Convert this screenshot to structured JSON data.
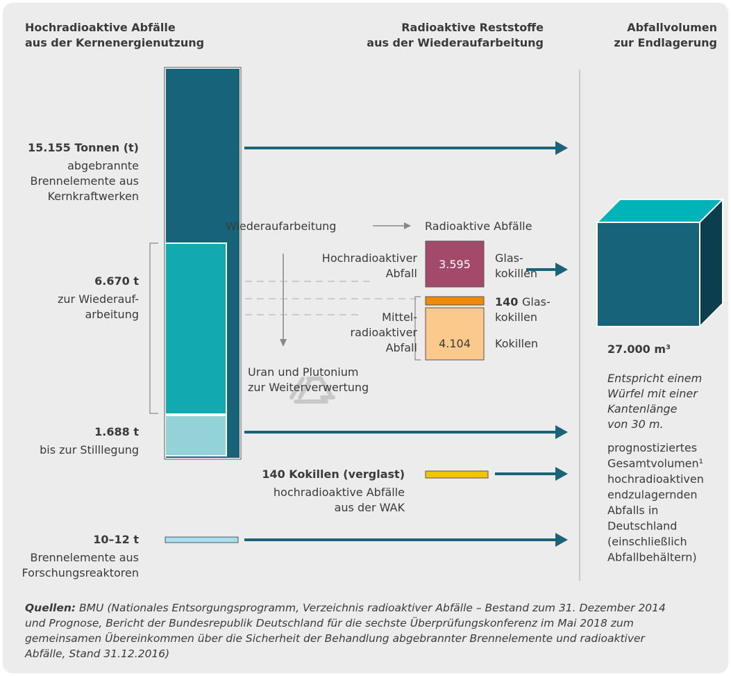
{
  "columns": [
    {
      "title": [
        "Hochradioaktive Abfälle",
        "aus der Kernenergienutzung"
      ]
    },
    {
      "title": [
        "Radioaktive Reststoffe",
        "aus der Wiederaufarbeitung"
      ]
    },
    {
      "title": [
        "Abfallvolumen",
        "zur Endlagerung"
      ]
    }
  ],
  "sources": [
    {
      "amount": "15.155 Tonnen (t)",
      "description": [
        "abgebrannte",
        "Brennelemente aus",
        "Kernkraftwerken"
      ]
    },
    {
      "amount": "6.670 t",
      "description": [
        "zur Wiederauf-",
        "arbeitung"
      ]
    },
    {
      "amount": "1.688 t",
      "description": [
        "bis zur Stilllegung"
      ]
    },
    {
      "amount": "10–12 t",
      "description": [
        "Brennelemente aus",
        "Forschungsreaktoren"
      ]
    }
  ],
  "reprocessing": {
    "process": "Wiederaufarbeitung",
    "result": "Radioaktive Abfälle",
    "high_level": {
      "label": [
        "Hochradioaktiver",
        "Abfall"
      ],
      "count": "3.595",
      "container": [
        "Glas-",
        "kokillen"
      ]
    },
    "medium_glass": {
      "count": "140",
      "container": [
        "Glas-",
        "kokillen"
      ]
    },
    "medium_level": {
      "label": [
        "Mittel-",
        "radioaktiver",
        "Abfall"
      ],
      "count": "4.104",
      "container": "Kokillen"
    },
    "recycling": [
      "Uran und Plutonium",
      "zur Weiterverwertung"
    ]
  },
  "wak": {
    "amount": "140 Kokillen (verglast)",
    "description": [
      "hochradioaktive Abfälle",
      "aus der WAK"
    ]
  },
  "volume": {
    "amount": "27.000 m³",
    "comparison": [
      "Entspricht einem",
      "Würfel mit einer",
      "Kantenlänge",
      "von 30 m."
    ],
    "description": [
      "prognostiziertes",
      "Gesamtvolumen¹",
      "hochradioaktiven",
      "endzulagernden",
      "Abfalls in",
      "Deutschland",
      "(einschließlich",
      "Abfallbehältern)"
    ]
  },
  "footer": {
    "label": "Quellen:",
    "lines": [
      " BMU (Nationales Entsorgungsprogramm, Verzeichnis radioaktiver Abfälle – Bestand zum 31. Dezember 2014",
      "und Prognose, Bericht der Bundesrepublik Deutschland für die sechste Überprüfungskonferenz im Mai 2018 zum",
      "gemeinsamen Übereinkommen über die Sicherheit der Behandlung abgebrannter Brennelemente und radioaktiver",
      "Abfälle, Stand 31.12.2016)"
    ]
  }
}
